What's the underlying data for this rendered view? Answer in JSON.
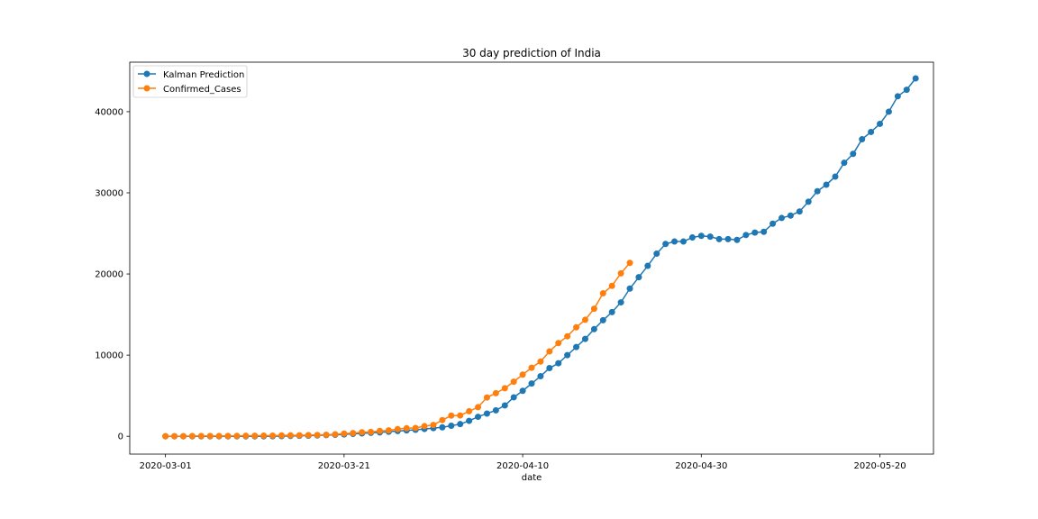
{
  "chart_data": {
    "type": "line",
    "title": "30 day prediction of India",
    "xlabel": "date",
    "ylabel": "",
    "x_range": [
      "2020-02-26",
      "2020-05-26"
    ],
    "ylim": [
      -2200,
      46100
    ],
    "x_ticks": [
      "2020-03-01",
      "2020-03-21",
      "2020-04-10",
      "2020-04-30",
      "2020-05-20"
    ],
    "y_ticks": [
      0,
      10000,
      20000,
      30000,
      40000
    ],
    "grid": false,
    "legend_position": "upper-left",
    "series": [
      {
        "name": "Kalman Prediction",
        "color": "#1f77b4",
        "marker": "circle",
        "start_date": "2020-03-01",
        "values": [
          0,
          0,
          0,
          0,
          0,
          0,
          0,
          0,
          0,
          0,
          0,
          0,
          10,
          20,
          40,
          60,
          80,
          100,
          140,
          180,
          230,
          300,
          350,
          420,
          480,
          560,
          640,
          720,
          800,
          900,
          1000,
          1100,
          1300,
          1500,
          1900,
          2400,
          2800,
          3200,
          3800,
          4800,
          5600,
          6500,
          7400,
          8400,
          9000,
          10000,
          11000,
          12000,
          13200,
          14300,
          15300,
          16500,
          18200,
          19600,
          21000,
          22500,
          23700,
          24000,
          24000,
          24500,
          24700,
          24600,
          24300,
          24300,
          24200,
          24800,
          25100,
          25200,
          26200,
          26900,
          27200,
          27700,
          28900,
          30200,
          31000,
          32000,
          33700,
          34800,
          36600,
          37500,
          38500,
          40000,
          41900,
          42700,
          44100
        ]
      },
      {
        "name": "Confirmed_Cases",
        "color": "#ff7f0e",
        "marker": "circle",
        "start_date": "2020-03-01",
        "values": [
          3,
          5,
          6,
          28,
          30,
          31,
          34,
          39,
          43,
          56,
          62,
          73,
          82,
          102,
          113,
          119,
          142,
          156,
          194,
          244,
          330,
          396,
          499,
          536,
          657,
          727,
          887,
          987,
          1024,
          1251,
          1397,
          1998,
          2543,
          2567,
          3082,
          3588,
          4778,
          5311,
          5916,
          6725,
          7598,
          8446,
          9205,
          10453,
          11487,
          12322,
          13430,
          14352,
          15722,
          17615,
          18539,
          20080,
          21370
        ]
      }
    ]
  }
}
